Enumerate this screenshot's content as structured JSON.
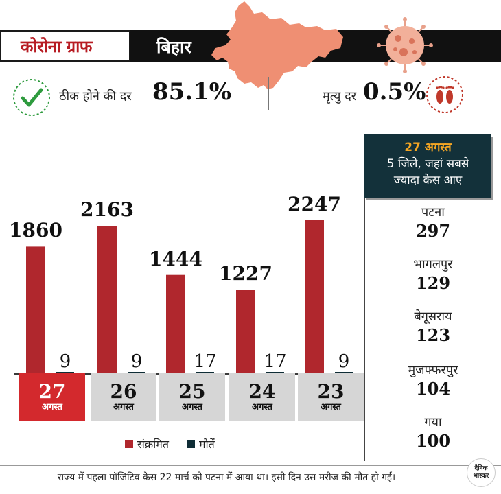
{
  "header": {
    "title": "कोरोना ग्राफ",
    "state": "बिहार"
  },
  "stats": {
    "recovery_label": "ठीक होने की दर",
    "recovery_value": "85.1%",
    "death_label": "मृत्यु दर",
    "death_value": "0.5%"
  },
  "colors": {
    "infected": "#b0272d",
    "deaths": "#0f2d36",
    "active_date": "#d3292d",
    "map": "#ef8f73",
    "title_red": "#b71c23"
  },
  "chart_data": {
    "type": "bar",
    "categories": [
      "27 अगस्त",
      "26 अगस्त",
      "25 अगस्त",
      "24 अगस्त",
      "23 अगस्त"
    ],
    "series": [
      {
        "name": "संक्रमित",
        "values": [
          1860,
          2163,
          1444,
          1227,
          2247
        ]
      },
      {
        "name": "मौतें",
        "values": [
          9,
          9,
          17,
          17,
          9
        ]
      }
    ],
    "legend_position": "bottom",
    "grid": false
  },
  "dates": [
    {
      "day": "27",
      "month": "अगस्त"
    },
    {
      "day": "26",
      "month": "अगस्त"
    },
    {
      "day": "25",
      "month": "अगस्त"
    },
    {
      "day": "24",
      "month": "अगस्त"
    },
    {
      "day": "23",
      "month": "अगस्त"
    }
  ],
  "legend": {
    "infected": "संक्रमित",
    "deaths": "मौतें"
  },
  "districts_panel": {
    "date": "27 अगस्त",
    "title_line1": "5 जिले, जहां सबसे",
    "title_line2": "ज्यादा केस आए",
    "items": [
      {
        "name": "पटना",
        "value": "297"
      },
      {
        "name": "भागलपुर",
        "value": "129"
      },
      {
        "name": "बेगूसराय",
        "value": "123"
      },
      {
        "name": "मुजफ्फरपुर",
        "value": "104"
      },
      {
        "name": "गया",
        "value": "100"
      }
    ]
  },
  "footnote": "राज्य में पहला पॉजिटिव केस 22 मार्च को पटना में आया था। इसी दिन उस मरीज की मौत हो गई।",
  "logo": {
    "line1": "दैनिक",
    "line2": "भास्कर"
  }
}
